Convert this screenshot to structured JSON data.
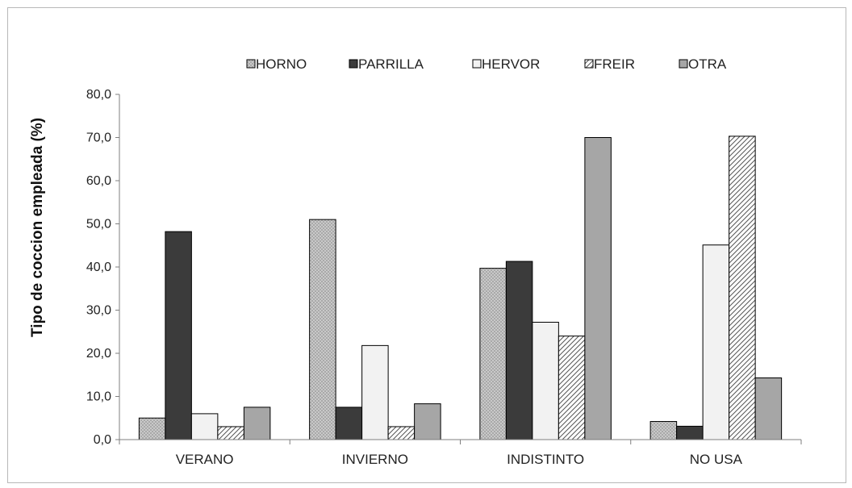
{
  "chart_data": {
    "type": "bar",
    "ylabel": "Tipo de coccion empleada (%)",
    "xlabel": "",
    "ylim": [
      0,
      80
    ],
    "ytick_values": [
      0,
      10,
      20,
      30,
      40,
      50,
      60,
      70,
      80
    ],
    "ytick_labels": [
      "0,0",
      "10,0",
      "20,0",
      "30,0",
      "40,0",
      "50,0",
      "60,0",
      "70,0",
      "80,0"
    ],
    "categories": [
      "VERANO",
      "INVIERNO",
      "INDISTINTO",
      "NO USA"
    ],
    "series": [
      {
        "name": "HORNO",
        "values": [
          5.0,
          51.0,
          39.7,
          4.2
        ]
      },
      {
        "name": "PARRILLA",
        "values": [
          48.2,
          7.5,
          41.3,
          3.1
        ]
      },
      {
        "name": "HERVOR",
        "values": [
          6.0,
          21.8,
          27.2,
          45.1
        ]
      },
      {
        "name": "FREIR",
        "values": [
          3.0,
          3.0,
          24.0,
          70.3
        ]
      },
      {
        "name": "OTRA",
        "values": [
          7.5,
          8.3,
          70.0,
          14.3
        ]
      }
    ],
    "legend_position": "top",
    "grid": false
  }
}
